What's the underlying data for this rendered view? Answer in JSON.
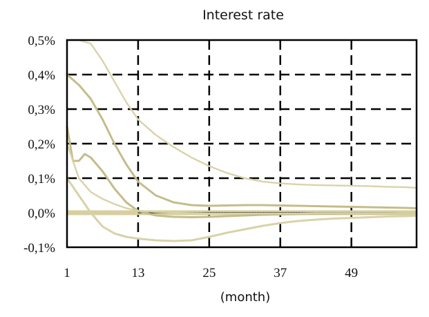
{
  "chart_data": {
    "type": "line",
    "title": "Interest rate",
    "xlabel": "(month)",
    "ylabel": "",
    "x_ticks": [
      1,
      13,
      25,
      37,
      49
    ],
    "y_ticks": [
      {
        "value": -0.1,
        "label": "-0,1%"
      },
      {
        "value": 0.0,
        "label": "0,0%"
      },
      {
        "value": 0.1,
        "label": "0,1%"
      },
      {
        "value": 0.2,
        "label": "0,2%"
      },
      {
        "value": 0.3,
        "label": "0,3%"
      },
      {
        "value": 0.4,
        "label": "0,4%"
      },
      {
        "value": 0.5,
        "label": "0,5%"
      }
    ],
    "xlim": [
      1,
      60
    ],
    "ylim": [
      -0.1,
      0.5
    ],
    "grid": true,
    "grid_style": "dashed",
    "colors": {
      "band_line": "#d8d2a8",
      "median_line": "#c4bc8a",
      "zero_line": "#d7cfa0",
      "zero_core": "#222222",
      "grid": "#000000",
      "frame": "#000000"
    },
    "series": [
      {
        "role": "upper-outer",
        "x": [
          1,
          3,
          5,
          7,
          9,
          11,
          13,
          16,
          19,
          22,
          25,
          28,
          31,
          34,
          37,
          40,
          43,
          46,
          49,
          52,
          55,
          58,
          60
        ],
        "values": [
          0.5,
          0.5,
          0.49,
          0.44,
          0.38,
          0.32,
          0.27,
          0.225,
          0.19,
          0.16,
          0.135,
          0.115,
          0.1,
          0.09,
          0.085,
          0.082,
          0.08,
          0.079,
          0.078,
          0.077,
          0.075,
          0.074,
          0.072
        ]
      },
      {
        "role": "upper-inner",
        "x": [
          1,
          3,
          5,
          7,
          9,
          11,
          13,
          16,
          19,
          22,
          25,
          28,
          31,
          34,
          37,
          40,
          43,
          46,
          49,
          52,
          55,
          58,
          60
        ],
        "values": [
          0.4,
          0.37,
          0.33,
          0.27,
          0.2,
          0.14,
          0.09,
          0.05,
          0.03,
          0.022,
          0.02,
          0.021,
          0.022,
          0.022,
          0.021,
          0.02,
          0.019,
          0.018,
          0.017,
          0.016,
          0.015,
          0.014,
          0.013
        ]
      },
      {
        "role": "median",
        "x": [
          1,
          2,
          3,
          4,
          5,
          7,
          9,
          11,
          13,
          16,
          19,
          22,
          25,
          28,
          31,
          34,
          37,
          40,
          43,
          46,
          49,
          52,
          55,
          58,
          60
        ],
        "values": [
          0.25,
          0.15,
          0.15,
          0.17,
          0.16,
          0.12,
          0.07,
          0.03,
          0.005,
          -0.008,
          -0.012,
          -0.013,
          -0.012,
          -0.01,
          -0.008,
          -0.006,
          -0.005,
          -0.004,
          -0.003,
          -0.003,
          -0.002,
          -0.002,
          -0.002,
          -0.001,
          -0.001
        ]
      },
      {
        "role": "lower-inner",
        "x": [
          1,
          3,
          5,
          7,
          9,
          11,
          13,
          16,
          19,
          22,
          25,
          28,
          31,
          34,
          37,
          40,
          43,
          46,
          49,
          52,
          55,
          58,
          60
        ],
        "values": [
          0.2,
          0.1,
          0.06,
          0.04,
          0.025,
          0.013,
          0.006,
          0.002,
          0.0,
          -0.001,
          -0.002,
          -0.002,
          -0.002,
          -0.002,
          -0.002,
          -0.002,
          -0.001,
          -0.001,
          -0.001,
          -0.001,
          -0.001,
          -0.001,
          -0.001
        ]
      },
      {
        "role": "lower-outer",
        "x": [
          1,
          3,
          5,
          7,
          9,
          11,
          13,
          16,
          19,
          22,
          25,
          28,
          31,
          34,
          37,
          40,
          43,
          46,
          49,
          52,
          55,
          58,
          60
        ],
        "values": [
          0.1,
          0.05,
          0.0,
          -0.04,
          -0.06,
          -0.07,
          -0.075,
          -0.08,
          -0.082,
          -0.08,
          -0.07,
          -0.058,
          -0.048,
          -0.038,
          -0.03,
          -0.024,
          -0.02,
          -0.017,
          -0.015,
          -0.013,
          -0.011,
          -0.01,
          -0.009
        ]
      }
    ],
    "zero_line": {
      "x_start": 1,
      "x_end": 60,
      "value": 0.0
    }
  }
}
